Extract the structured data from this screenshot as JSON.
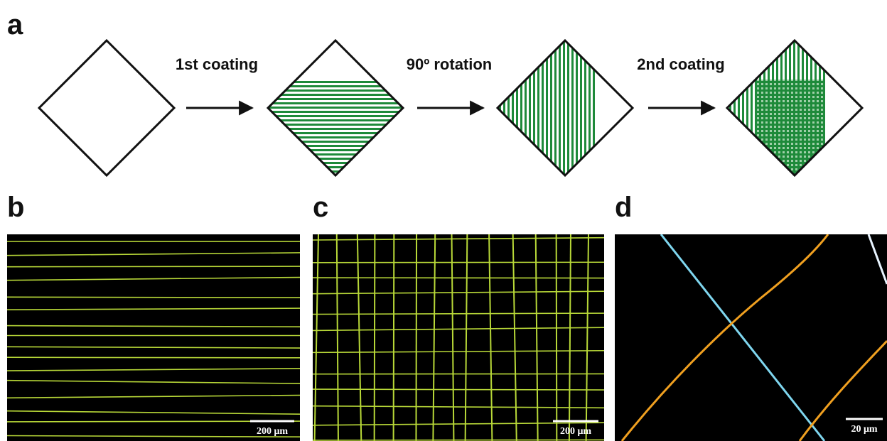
{
  "panels": {
    "a": {
      "label": "a",
      "steps": [
        "1st coating",
        "90º rotation",
        "2nd coating"
      ]
    },
    "b": {
      "label": "b",
      "scale_bar": "200 μm"
    },
    "c": {
      "label": "c",
      "scale_bar": "200 μm"
    },
    "d": {
      "label": "d",
      "scale_bar": "20 μm"
    }
  }
}
